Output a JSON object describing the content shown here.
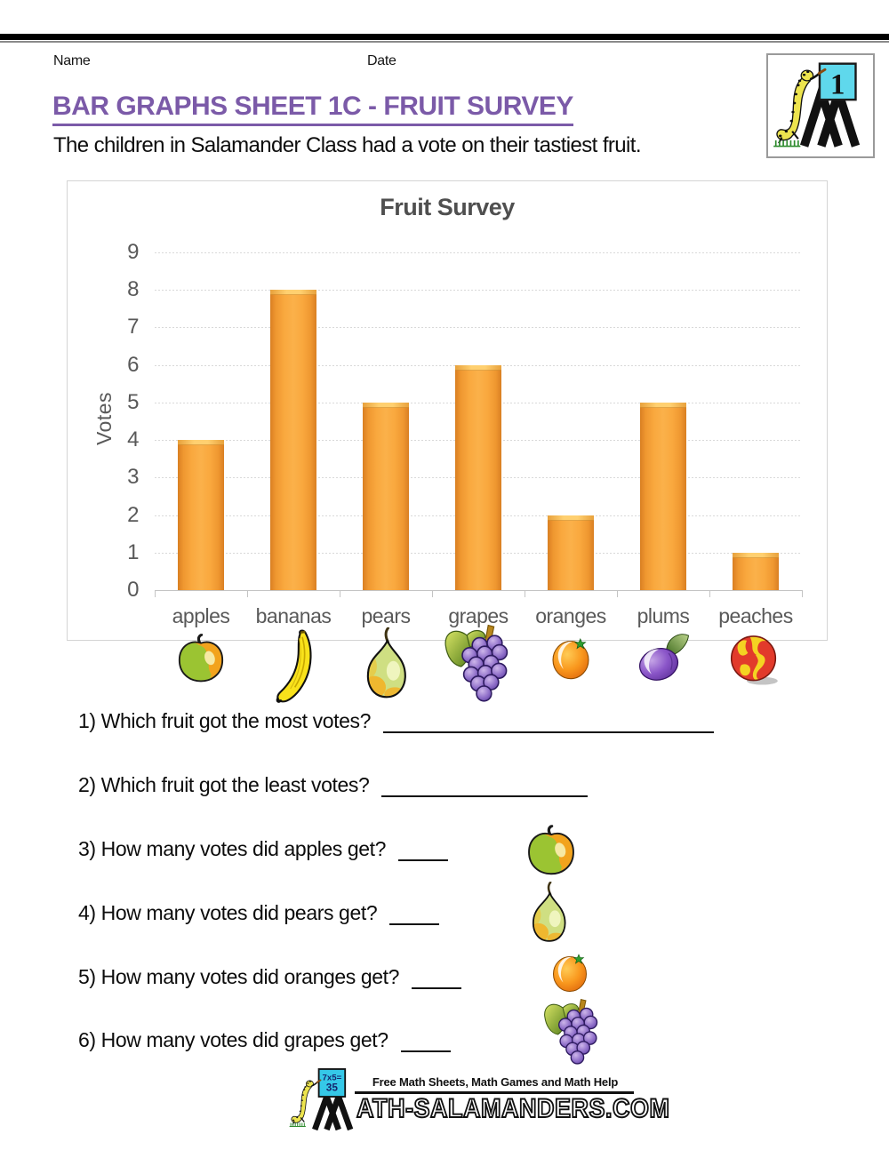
{
  "page": {
    "name_label": "Name",
    "date_label": "Date",
    "title": "BAR GRAPHS SHEET 1C - FRUIT SURVEY",
    "subtitle": "The children in Salamander Class had a vote on their tastiest fruit."
  },
  "header_badge": {
    "number": "1"
  },
  "chart_data": {
    "type": "bar",
    "title": "Fruit Survey",
    "categories": [
      "apples",
      "bananas",
      "pears",
      "grapes",
      "oranges",
      "plums",
      "peaches"
    ],
    "values": [
      4,
      8,
      5,
      6,
      2,
      5,
      1
    ],
    "axis_icons": [
      "apple",
      "banana",
      "pear",
      "grapes",
      "orange",
      "plum",
      "peach"
    ],
    "xlabel": "",
    "ylabel": "Votes",
    "ylim": [
      0,
      9
    ],
    "ytick_values": [
      0,
      1,
      2,
      3,
      4,
      5,
      6,
      7,
      8,
      9
    ],
    "grid": true,
    "legend": "none",
    "bar_color": "#F9A83E"
  },
  "questions": [
    {
      "number": "1)",
      "text": "Which fruit got the most votes?",
      "icon": null
    },
    {
      "number": "2)",
      "text": "Which fruit got the least votes?",
      "icon": null
    },
    {
      "number": "3)",
      "text": "How many votes did apples get?",
      "icon": "apple"
    },
    {
      "number": "4)",
      "text": "How many votes did pears get?",
      "icon": "pear"
    },
    {
      "number": "5)",
      "text": "How many votes did oranges get?",
      "icon": "orange"
    },
    {
      "number": "6)",
      "text": "How many votes did grapes get?",
      "icon": "grapes"
    }
  ],
  "footer": {
    "board_line1": "7x5=",
    "board_line2": "35",
    "tagline": "Free Math Sheets, Math Games and Math Help",
    "wordmark": "ATH-SALAMANDERS.COM"
  },
  "colors": {
    "title_purple": "#7B5AA8",
    "chart_text_gray": "#595959",
    "bar_orange": "#F9A83E",
    "bar_edge": "#D97F22",
    "bar_highlight": "#FFD070",
    "gridline_gray": "#D9D9D9",
    "logo_cyan": "#4FD4EA"
  }
}
